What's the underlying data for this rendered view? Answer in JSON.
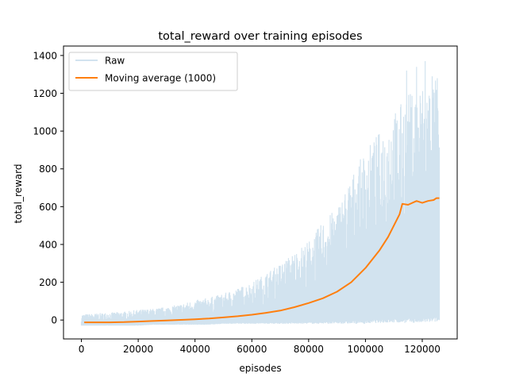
{
  "chart_data": {
    "type": "line",
    "title": "total_reward over training episodes",
    "xlabel": "episodes",
    "ylabel": "total_reward",
    "xlim": [
      -6300,
      132300
    ],
    "ylim": [
      -100,
      1450
    ],
    "xticks": [
      0,
      20000,
      40000,
      60000,
      80000,
      100000,
      120000
    ],
    "xtick_labels": [
      "0",
      "20000",
      "40000",
      "60000",
      "80000",
      "100000",
      "120000"
    ],
    "yticks": [
      0,
      200,
      400,
      600,
      800,
      1000,
      1200,
      1400
    ],
    "ytick_labels": [
      "0",
      "200",
      "400",
      "600",
      "800",
      "1000",
      "1200",
      "1400"
    ],
    "grid": false,
    "legend_position": "upper-left",
    "colors": {
      "raw": "#d2e3ef",
      "moving_average": "#ff7f0e"
    },
    "series": [
      {
        "name": "Raw",
        "kind": "band",
        "x": [
          0,
          5000,
          10000,
          15000,
          20000,
          25000,
          30000,
          35000,
          40000,
          45000,
          50000,
          55000,
          60000,
          65000,
          70000,
          75000,
          80000,
          85000,
          90000,
          95000,
          100000,
          105000,
          110000,
          115000,
          120000,
          125000,
          126000
        ],
        "upper": [
          30,
          35,
          40,
          45,
          55,
          60,
          70,
          85,
          105,
          120,
          140,
          170,
          200,
          250,
          300,
          360,
          420,
          520,
          600,
          760,
          900,
          1000,
          1100,
          1200,
          1250,
          1280,
          1050
        ],
        "lower": [
          -30,
          -30,
          -30,
          -30,
          -30,
          -25,
          -25,
          -25,
          -25,
          -25,
          -20,
          -20,
          -20,
          -20,
          -20,
          -20,
          -20,
          -20,
          -20,
          -20,
          -20,
          -15,
          -15,
          -15,
          -15,
          -10,
          -10
        ]
      },
      {
        "name": "Moving average (1000)",
        "kind": "line",
        "x": [
          1000,
          5000,
          10000,
          15000,
          20000,
          25000,
          30000,
          35000,
          40000,
          45000,
          50000,
          55000,
          60000,
          65000,
          70000,
          75000,
          80000,
          85000,
          90000,
          95000,
          100000,
          105000,
          108000,
          110000,
          112000,
          113000,
          115000,
          118000,
          120000,
          122000,
          124000,
          125000,
          126000
        ],
        "values": [
          -12,
          -12,
          -12,
          -11,
          -8,
          -5,
          -2,
          1,
          4,
          8,
          14,
          20,
          28,
          38,
          50,
          68,
          90,
          115,
          150,
          200,
          275,
          370,
          440,
          500,
          560,
          615,
          610,
          630,
          620,
          630,
          635,
          645,
          645
        ]
      }
    ]
  }
}
